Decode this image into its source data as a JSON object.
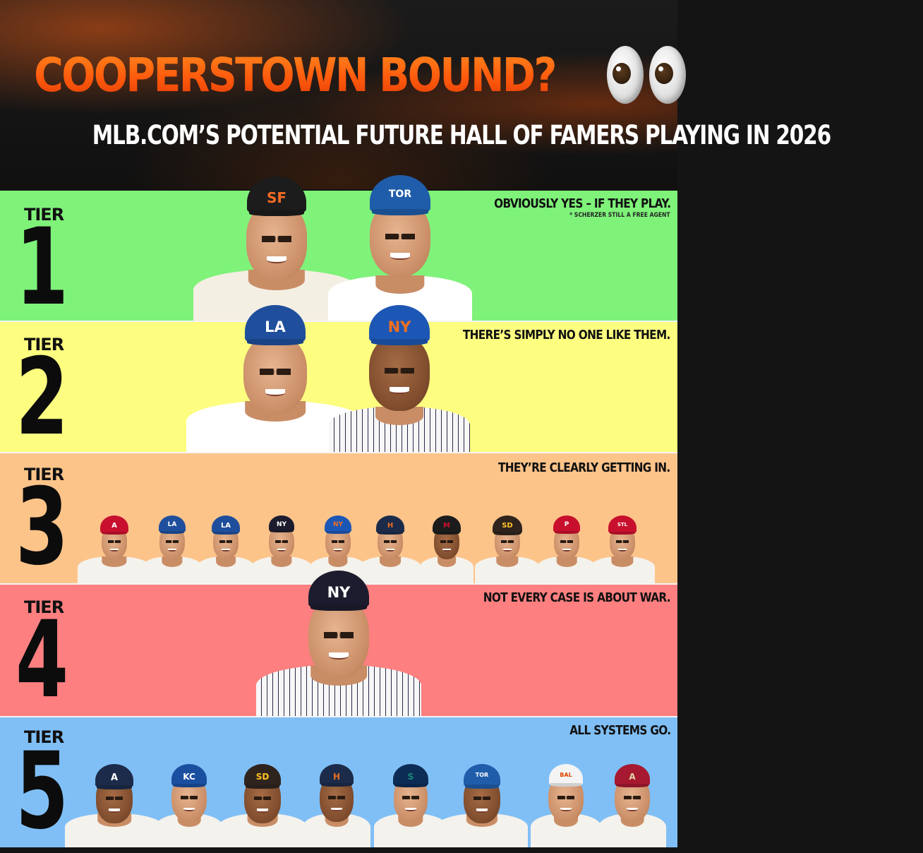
{
  "header": {
    "title": "COOPERSTOWN BOUND?",
    "title_emoji": "eyes-icon",
    "subtitle": "MLB.COM’S POTENTIAL FUTURE HALL OF FAMERS PLAYING IN 2026"
  },
  "tiers": [
    {
      "label": "TIER",
      "number": "1",
      "caption": "OBVIOUSLY YES – IF THEY PLAY.",
      "note": "* SCHERZER STILL A FREE AGENT",
      "color": "#7ff27a",
      "players": [
        {
          "cap": "#1c1c1c",
          "logo": "SF",
          "logo_color": "#f26b22",
          "jersey": "#f4efe3"
        },
        {
          "cap": "#1f5dab",
          "logo": "TOR",
          "logo_color": "#ffffff",
          "jersey": "#ffffff"
        }
      ]
    },
    {
      "label": "TIER",
      "number": "2",
      "caption": "THERE’S SIMPLY NO ONE LIKE THEM.",
      "color": "#fdfd80",
      "players": [
        {
          "cap": "#1f4f9c",
          "logo": "LA",
          "logo_color": "#ffffff",
          "jersey": "#ffffff"
        },
        {
          "cap": "#1d57b5",
          "logo": "NY",
          "logo_color": "#f36f21",
          "jersey": "stripes"
        }
      ]
    },
    {
      "label": "TIER",
      "number": "3",
      "caption": "THEY’RE CLEARLY GETTING IN.",
      "color": "#fdc48a",
      "players": [
        {
          "cap": "#c8102e",
          "logo": "A",
          "logo_color": "#ffffff"
        },
        {
          "cap": "#1f4f9c",
          "logo": "LA",
          "logo_color": "#ffffff"
        },
        {
          "cap": "#1f4f9c",
          "logo": "LA",
          "logo_color": "#ffffff"
        },
        {
          "cap": "#1c1c2e",
          "logo": "NY",
          "logo_color": "#ffffff"
        },
        {
          "cap": "#1d57b5",
          "logo": "NY",
          "logo_color": "#f36f21"
        },
        {
          "cap": "#1c2b4a",
          "logo": "H",
          "logo_color": "#eb6e1f"
        },
        {
          "cap": "#1c1c1c",
          "logo": "M",
          "logo_color": "#c8102e"
        },
        {
          "cap": "#2f241d",
          "logo": "SD",
          "logo_color": "#ffc425"
        },
        {
          "cap": "#c8102e",
          "logo": "P",
          "logo_color": "#ffffff"
        },
        {
          "cap": "#c8102e",
          "logo": "STL",
          "logo_color": "#ffffff"
        }
      ]
    },
    {
      "label": "TIER",
      "number": "4",
      "caption": "NOT EVERY CASE IS ABOUT WAR.",
      "color": "#fd7f80",
      "players": [
        {
          "cap": "#1c1c2e",
          "logo": "NY",
          "logo_color": "#ffffff",
          "jersey": "stripes"
        }
      ]
    },
    {
      "label": "TIER",
      "number": "5",
      "caption": "ALL SYSTEMS GO.",
      "color": "#80bff6",
      "players": [
        {
          "cap": "#1c2b4a",
          "logo": "A",
          "logo_color": "#ffffff"
        },
        {
          "cap": "#1a4fa0",
          "logo": "KC",
          "logo_color": "#ffffff"
        },
        {
          "cap": "#2f241d",
          "logo": "SD",
          "logo_color": "#ffc425"
        },
        {
          "cap": "#1c2b4a",
          "logo": "H",
          "logo_color": "#eb6e1f"
        },
        {
          "cap": "#0c2c56",
          "logo": "S",
          "logo_color": "#1a8a7a"
        },
        {
          "cap": "#1f5dab",
          "logo": "TOR",
          "logo_color": "#ffffff"
        },
        {
          "cap": "#f4f4f4",
          "logo": "BAL",
          "logo_color": "#df4601"
        },
        {
          "cap": "#a71930",
          "logo": "A",
          "logo_color": "#e3d4ad"
        }
      ]
    }
  ]
}
